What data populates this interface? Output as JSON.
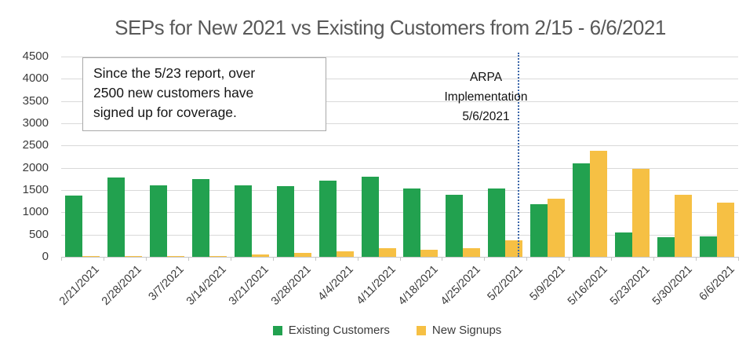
{
  "title": "SEPs for New 2021 vs Existing Customers from 2/15 - 6/6/2021",
  "colors": {
    "existing": "#22A14F",
    "new_signups": "#F6C044",
    "gridline": "#D9D9D9",
    "axis_line": "#C6C6C6",
    "title_text": "#595959",
    "annotation_border": "#A9A9A9",
    "divider_blue": "#3B66A9"
  },
  "chart_data": {
    "type": "bar",
    "title": "SEPs for New 2021 vs Existing Customers from 2/15 - 6/6/2021",
    "xlabel": "",
    "ylabel": "",
    "ylim": [
      0,
      4500
    ],
    "yticks": [
      0,
      500,
      1000,
      1500,
      2000,
      2500,
      3000,
      3500,
      4000,
      4500
    ],
    "grid": true,
    "legend_position": "bottom",
    "categories": [
      "2/21/2021",
      "2/28/2021",
      "3/7/2021",
      "3/14/2021",
      "3/21/2021",
      "3/28/2021",
      "4/4/2021",
      "4/11/2021",
      "4/18/2021",
      "4/25/2021",
      "5/2/2021",
      "5/9/2021",
      "5/16/2021",
      "5/23/2021",
      "5/30/2021",
      "6/6/2021"
    ],
    "series": [
      {
        "name": "Existing Customers",
        "color": "#22A14F",
        "values": [
          1380,
          1780,
          1610,
          1750,
          1600,
          1580,
          1720,
          1800,
          1530,
          1400,
          1540,
          1180,
          2100,
          550,
          440,
          450
        ]
      },
      {
        "name": "New Signups",
        "color": "#F6C044",
        "values": [
          5,
          5,
          15,
          25,
          60,
          90,
          130,
          200,
          150,
          190,
          370,
          1300,
          2380,
          1980,
          1390,
          1220
        ]
      }
    ],
    "annotations": [
      {
        "type": "vline",
        "x_between": [
          "5/2/2021",
          "5/9/2021"
        ],
        "style": "dotted",
        "color": "#3B66A9",
        "lines": [
          "ARPA",
          "Implementation",
          "5/6/2021"
        ]
      },
      {
        "type": "textbox",
        "text": "Since the 5/23 report, over 2500 new customers have signed up for coverage."
      }
    ]
  }
}
